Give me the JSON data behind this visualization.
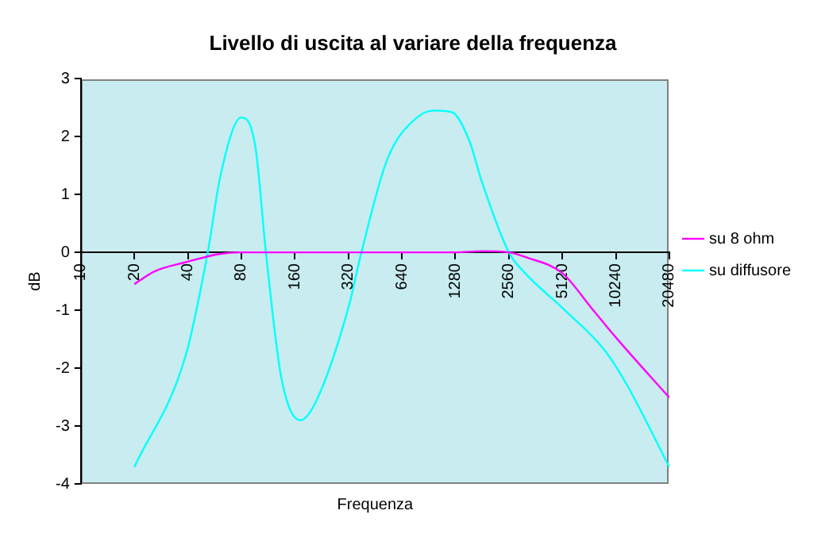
{
  "chart_data": {
    "type": "line",
    "title": "Livello di uscita al variare della frequenza",
    "xlabel": "Frequenza",
    "ylabel": "dB",
    "log": "x",
    "xlim": [
      10,
      20480
    ],
    "xticks": [
      10,
      20,
      40,
      80,
      160,
      320,
      640,
      1280,
      2560,
      5120,
      10240,
      20480
    ],
    "ylim": [
      -4,
      3
    ],
    "yticks": [
      -4,
      -3,
      -2,
      -1,
      0,
      1,
      2,
      3
    ],
    "grid": false,
    "legend": "right",
    "marker": "none",
    "line_style": "solid",
    "series": [
      {
        "name": "su 8 ohm",
        "color": "#ff00ff",
        "x": [
          20,
          26,
          39,
          60,
          80,
          160,
          320,
          640,
          1280,
          1800,
          2560,
          3160,
          5120,
          7460,
          10240,
          20480
        ],
        "values": [
          -0.55,
          -0.33,
          -0.17,
          -0.03,
          0,
          0,
          0,
          0,
          0,
          0.02,
          0,
          -0.08,
          -0.36,
          -0.96,
          -1.47,
          -2.51
        ]
      },
      {
        "name": "su diffusore",
        "color": "#00ffff",
        "x": [
          20,
          39,
          52,
          61,
          80,
          96,
          110,
          134,
          172,
          211,
          320,
          379,
          532,
          780,
          978,
          1226,
          1537,
          1800,
          2560,
          3160,
          5120,
          8740,
          11720,
          20480
        ],
        "values": [
          -3.71,
          -1.77,
          0.03,
          1.32,
          2.33,
          1.82,
          0,
          -2.15,
          -2.9,
          -2.57,
          -0.96,
          0,
          1.62,
          2.33,
          2.45,
          2.42,
          1.92,
          1.23,
          0,
          -0.36,
          -0.96,
          -1.67,
          -2.27,
          -3.71
        ]
      }
    ]
  }
}
